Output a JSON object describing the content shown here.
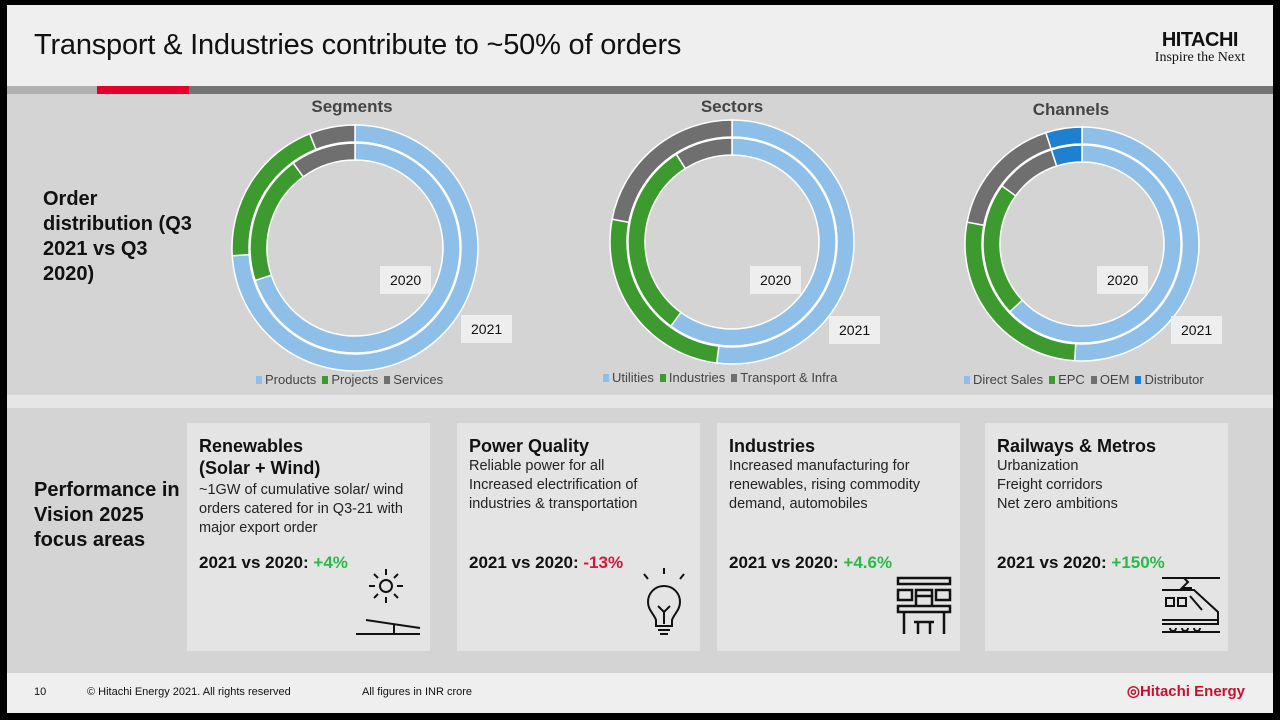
{
  "header": {
    "title": "Transport & Industries contribute to ~50% of orders",
    "logo_line1": "HITACHI",
    "logo_line2": "Inspire the Next"
  },
  "rows": {
    "order_label": "Order distribution (Q3 2021 vs Q3 2020)",
    "performance_label": "Performance in Vision 2025 focus areas"
  },
  "colors": {
    "light_blue": "#8dbfe8",
    "green": "#3c9a2e",
    "gray": "#6f6f6f",
    "blue": "#1f7fd1",
    "positive": "#2db84b",
    "negative": "#d4163c",
    "accent_red": "#e4002b"
  },
  "chart_data": [
    {
      "type": "donut",
      "title": "Segments",
      "categories": [
        "Products",
        "Projects",
        "Services"
      ],
      "series": [
        {
          "name": "2021",
          "ring": "outer",
          "values": [
            74,
            20,
            6
          ]
        },
        {
          "name": "2020",
          "ring": "inner",
          "values": [
            70,
            20,
            10
          ]
        }
      ],
      "labels": [
        "2020",
        "2021"
      ],
      "legend": "bottom"
    },
    {
      "type": "donut",
      "title": "Sectors",
      "categories": [
        "Utilities",
        "Industries",
        "Transport & Infra"
      ],
      "series": [
        {
          "name": "2021",
          "ring": "outer",
          "values": [
            52,
            26,
            22
          ]
        },
        {
          "name": "2020",
          "ring": "inner",
          "values": [
            60,
            31,
            9
          ]
        }
      ],
      "labels": [
        "2020",
        "2021"
      ],
      "legend": "bottom"
    },
    {
      "type": "donut",
      "title": "Channels",
      "categories": [
        "Direct Sales",
        "EPC",
        "OEM",
        "Distributor"
      ],
      "series": [
        {
          "name": "2021",
          "ring": "outer",
          "values": [
            51,
            27,
            17,
            5
          ]
        },
        {
          "name": "2020",
          "ring": "inner",
          "values": [
            63,
            22,
            10,
            5
          ]
        }
      ],
      "labels": [
        "2020",
        "2021"
      ],
      "legend": "bottom"
    }
  ],
  "cards": [
    {
      "title": "Renewables (Solar + Wind)",
      "lines": [
        "~1GW of cumulative solar/ wind orders catered for in Q3-21 with major export order"
      ],
      "kpi_label": "2021 vs 2020: ",
      "kpi_value": "+4%",
      "icon": "solar-panel-icon"
    },
    {
      "title": "Power Quality",
      "lines": [
        "Reliable power for all",
        "Increased electrification of industries & transportation"
      ],
      "kpi_label": "2021 vs 2020: ",
      "kpi_value": "-13%",
      "icon": "light-bulb-icon"
    },
    {
      "title": "Industries",
      "lines": [
        "Increased manufacturing for renewables, rising commodity demand, automobiles"
      ],
      "kpi_label": "2021 vs 2020: ",
      "kpi_value": "+4.6%",
      "icon": "factory-icon"
    },
    {
      "title": "Railways & Metros",
      "lines": [
        "Urbanization",
        "Freight corridors",
        "Net zero ambitions"
      ],
      "kpi_label": "2021 vs 2020: ",
      "kpi_value": "+150%",
      "icon": "train-icon"
    }
  ],
  "footer": {
    "page": "10",
    "copyright": "© Hitachi Energy 2021. All rights reserved",
    "note": "All figures in INR crore",
    "brand": "Hitachi Energy"
  }
}
